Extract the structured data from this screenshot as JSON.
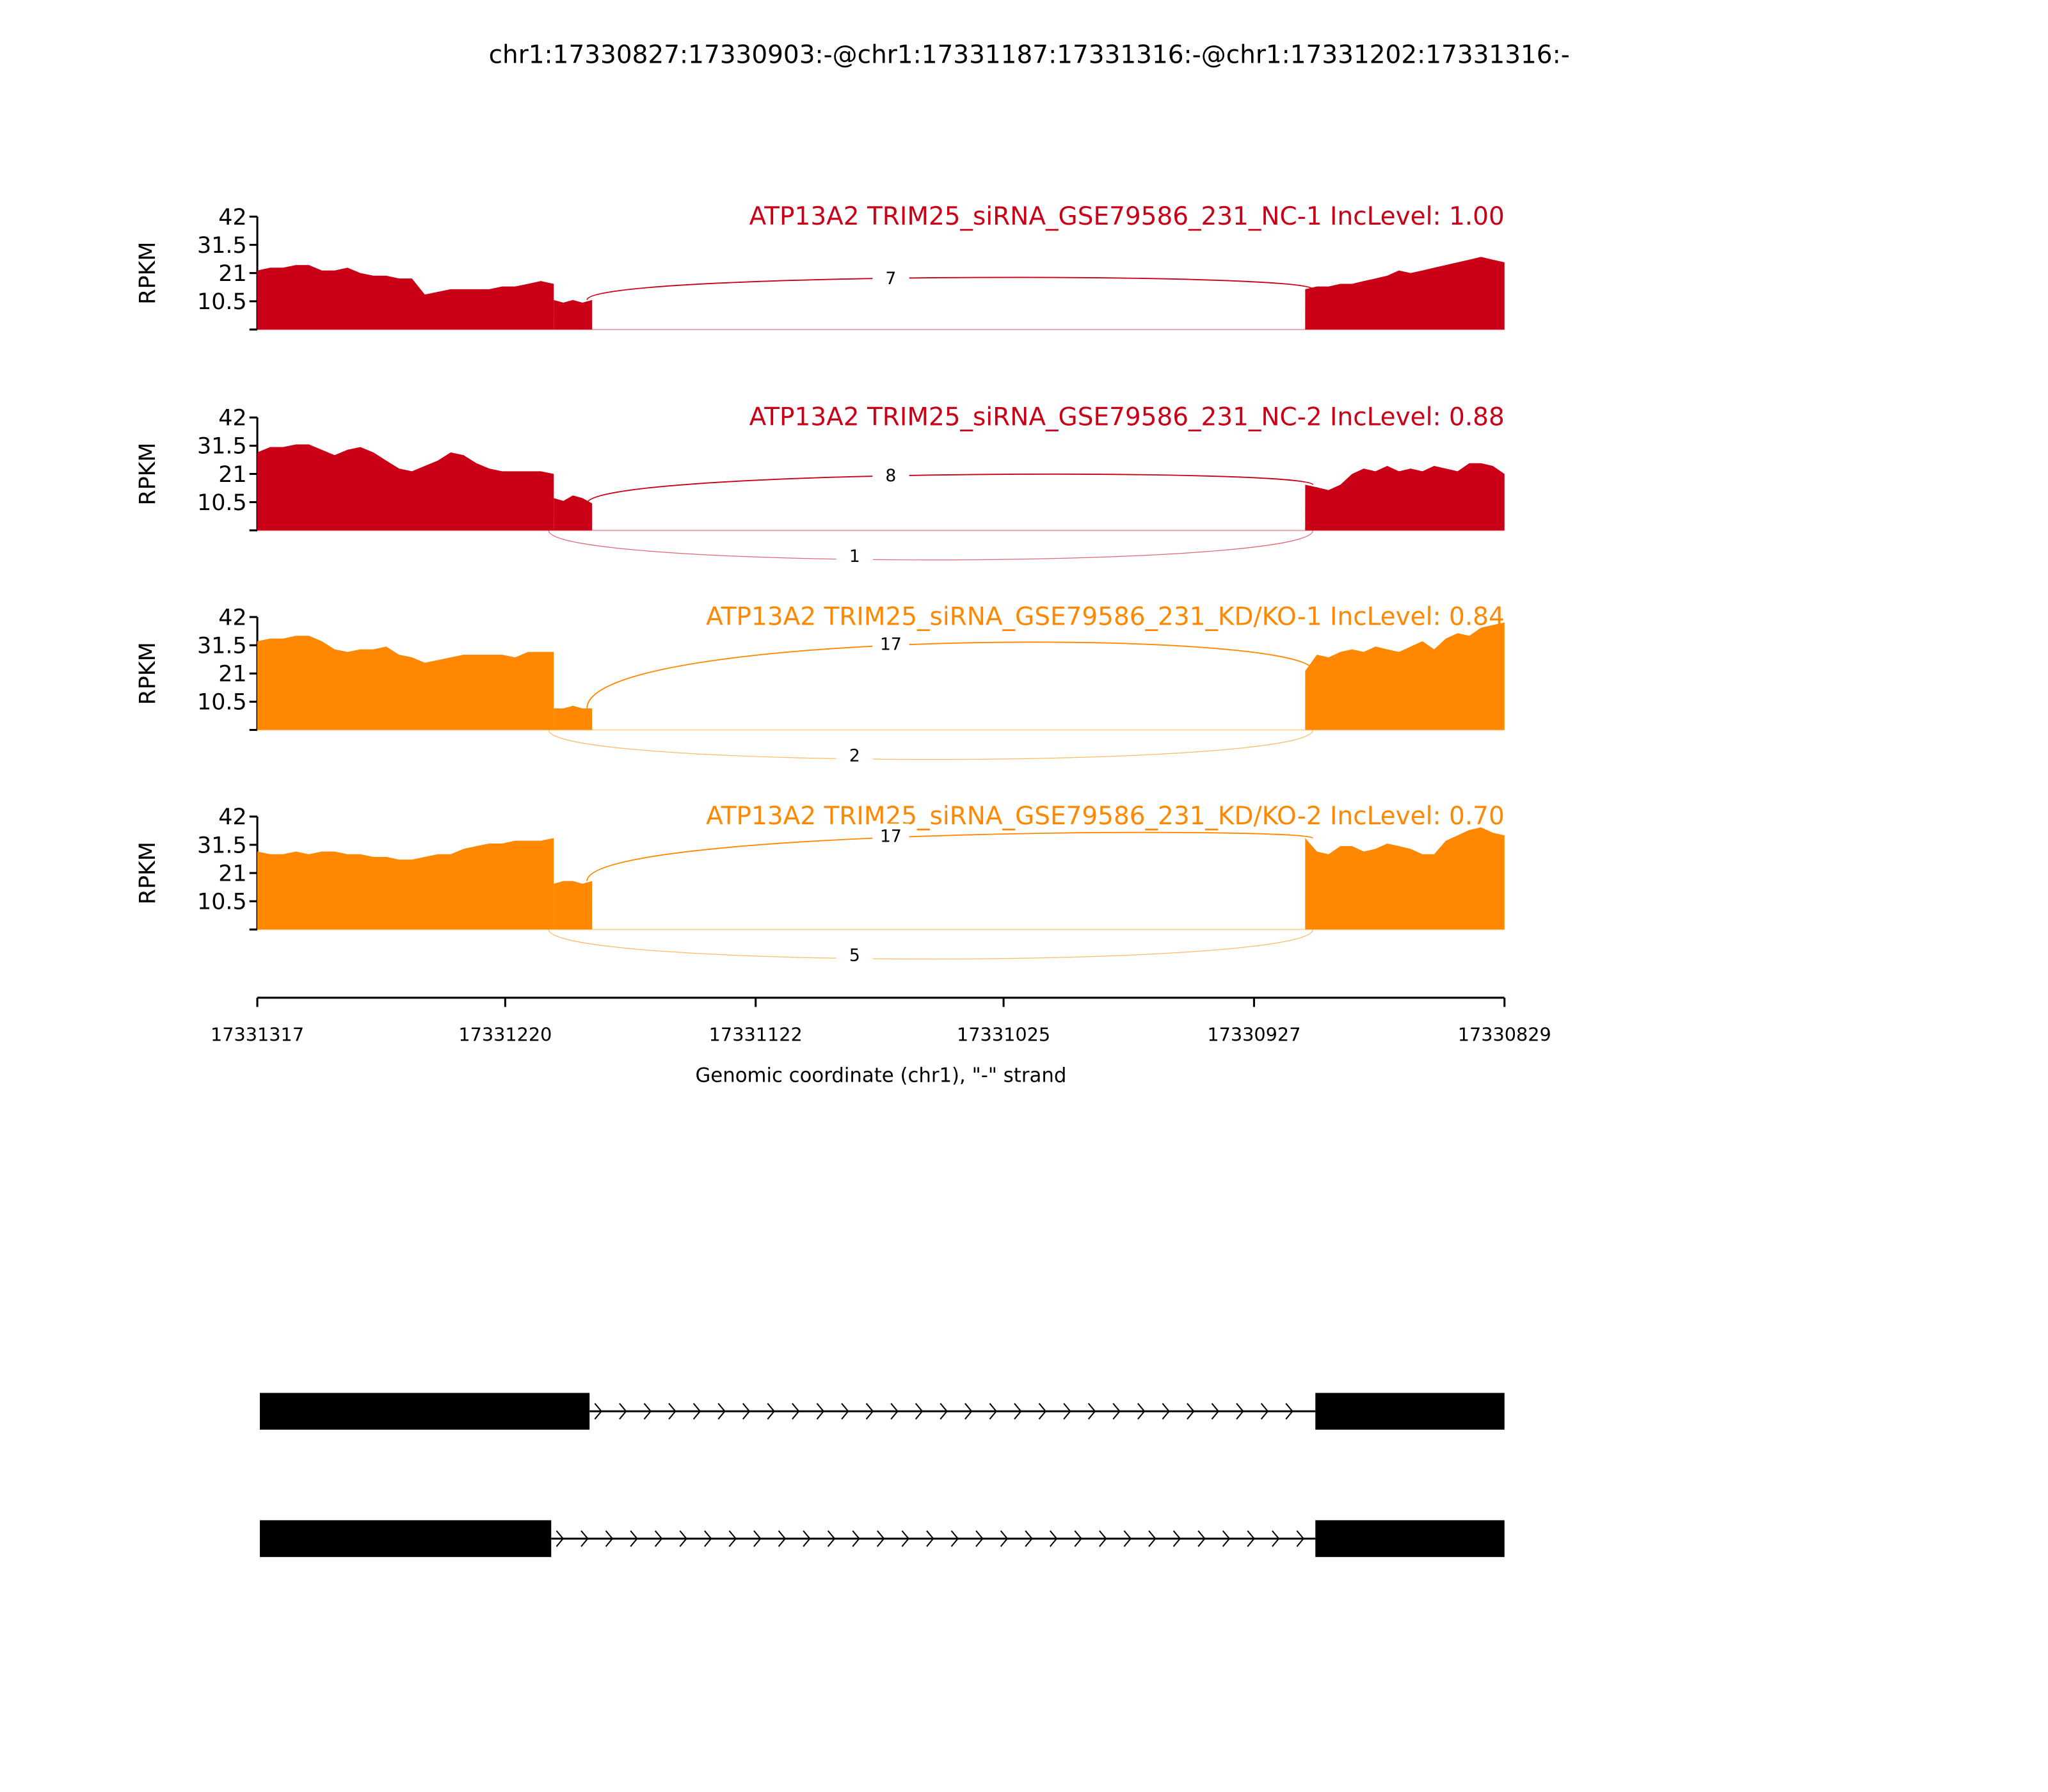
{
  "chart_data": {
    "type": "area",
    "title": "chr1:17330827:17330903:-@chr1:17331187:17331316:-@chr1:17331202:17331316:-",
    "xlabel": "Genomic coordinate (chr1), \"-\" strand",
    "ylabel": "RPKM",
    "xlim": [
      17331317,
      17330829
    ],
    "xticks": [
      "17331317",
      "17331220",
      "17331122",
      "17331025",
      "17330927",
      "17330829"
    ],
    "xtick_values": [
      17331317,
      17331220,
      17331122,
      17331025,
      17330927,
      17330829
    ],
    "ylim": [
      0,
      42
    ],
    "yticks": [
      "42",
      "31.5",
      "21",
      "10.5"
    ],
    "ytick_values": [
      42,
      31.5,
      21,
      10.5,
      0
    ],
    "samples": [
      {
        "label": "ATP13A2 TRIM25_siRNA_GSE79586_231_NC-1 IncLevel: 1.00",
        "color": "#c90016",
        "coverage": [
          {
            "start": 17331317,
            "end": 17331201,
            "values": [
              22,
              23,
              23,
              24,
              24,
              22,
              22,
              23,
              21,
              20,
              20,
              19,
              19,
              13,
              14,
              15,
              15,
              15,
              15,
              16,
              16,
              17,
              18,
              17
            ]
          },
          {
            "start": 17331201,
            "end": 17331186,
            "values": [
              11,
              10,
              11,
              10,
              11
            ]
          },
          {
            "start": 17330907,
            "end": 17330829,
            "values": [
              15,
              16,
              16,
              17,
              17,
              18,
              19,
              20,
              22,
              21,
              22,
              23,
              24,
              25,
              26,
              27,
              26,
              25
            ]
          }
        ],
        "junctions": [
          {
            "from": 17331188,
            "to": 17330904,
            "count": "7",
            "side": "above"
          }
        ]
      },
      {
        "label": "ATP13A2 TRIM25_siRNA_GSE79586_231_NC-2 IncLevel: 0.88",
        "color": "#c90016",
        "coverage": [
          {
            "start": 17331317,
            "end": 17331201,
            "values": [
              29,
              31,
              31,
              32,
              32,
              30,
              28,
              30,
              31,
              29,
              26,
              23,
              22,
              24,
              26,
              29,
              28,
              25,
              23,
              22,
              22,
              22,
              22,
              21
            ]
          },
          {
            "start": 17331201,
            "end": 17331186,
            "values": [
              12,
              11,
              13,
              12,
              10
            ]
          },
          {
            "start": 17330907,
            "end": 17330829,
            "values": [
              17,
              16,
              15,
              17,
              21,
              23,
              22,
              24,
              22,
              23,
              22,
              24,
              23,
              22,
              25,
              25,
              24,
              21
            ]
          }
        ],
        "junctions": [
          {
            "from": 17331188,
            "to": 17330904,
            "count": "8",
            "side": "above"
          },
          {
            "from": 17331203,
            "to": 17330904,
            "count": "1",
            "side": "below"
          }
        ]
      },
      {
        "label": "ATP13A2 TRIM25_siRNA_GSE79586_231_KD/KO-1 IncLevel: 0.84",
        "color": "#ff8800",
        "coverage": [
          {
            "start": 17331317,
            "end": 17331201,
            "values": [
              33,
              34,
              34,
              35,
              35,
              33,
              30,
              29,
              30,
              30,
              31,
              28,
              27,
              25,
              26,
              27,
              28,
              28,
              28,
              28,
              27,
              29,
              29,
              29
            ]
          },
          {
            "start": 17331201,
            "end": 17331186,
            "values": [
              8,
              8,
              9,
              8,
              8
            ]
          },
          {
            "start": 17330907,
            "end": 17330829,
            "values": [
              22,
              28,
              27,
              29,
              30,
              29,
              31,
              30,
              29,
              31,
              33,
              30,
              34,
              36,
              35,
              38,
              39,
              40
            ]
          }
        ],
        "junctions": [
          {
            "from": 17331188,
            "to": 17330904,
            "count": "17",
            "side": "above"
          },
          {
            "from": 17331203,
            "to": 17330904,
            "count": "2",
            "side": "below"
          }
        ]
      },
      {
        "label": "ATP13A2 TRIM25_siRNA_GSE79586_231_KD/KO-2 IncLevel: 0.70",
        "color": "#ff8800",
        "coverage": [
          {
            "start": 17331317,
            "end": 17331201,
            "values": [
              29,
              28,
              28,
              29,
              28,
              29,
              29,
              28,
              28,
              27,
              27,
              26,
              26,
              27,
              28,
              28,
              30,
              31,
              32,
              32,
              33,
              33,
              33,
              34
            ]
          },
          {
            "start": 17331201,
            "end": 17331186,
            "values": [
              17,
              18,
              18,
              17,
              18
            ]
          },
          {
            "start": 17330907,
            "end": 17330829,
            "values": [
              34,
              29,
              28,
              31,
              31,
              29,
              30,
              32,
              31,
              30,
              28,
              28,
              33,
              35,
              37,
              38,
              36,
              35
            ]
          }
        ],
        "junctions": [
          {
            "from": 17331188,
            "to": 17330904,
            "count": "17",
            "side": "above"
          },
          {
            "from": 17331203,
            "to": 17330904,
            "count": "5",
            "side": "below"
          }
        ]
      }
    ],
    "gene_models": [
      {
        "exons": [
          [
            17331316,
            17331187
          ],
          [
            17330903,
            17330829
          ]
        ]
      },
      {
        "exons": [
          [
            17331316,
            17331202
          ],
          [
            17330903,
            17330829
          ]
        ]
      }
    ]
  }
}
